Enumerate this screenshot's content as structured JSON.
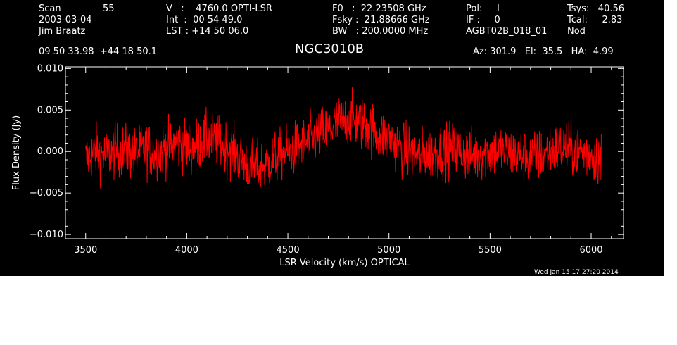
{
  "header": {
    "scan_label": "Scan",
    "scan_value": "55",
    "date": "2003-03-04",
    "observer": "Jim Braatz",
    "v_line": "V   :    4760.0 OPTI-LSR",
    "int_line": "Int  :  00 54 49.0",
    "lst_line": "LST : +14 50 06.0",
    "f0_line": "F0   :  22.23508 GHz",
    "fsky_line": "Fsky :  21.88666 GHz",
    "bw_line": "BW   : 200.0000 MHz",
    "pol_line": "Pol:     I",
    "if_line": "IF :     0",
    "project": "AGBT02B_018_01",
    "tsys_line": "Tsys:   40.56",
    "tcal_line": "Tcal:     2.83",
    "nod": "Nod",
    "coords": "09 50 33.98  +44 18 50.1",
    "source": "NGC3010B",
    "azelha": "Az: 301.9   El:  35.5   HA:  4.99",
    "timestamp": "Wed Jan 15 17:27:20 2014"
  },
  "colors": {
    "background": "#000000",
    "axes": "#ffffff",
    "trace": "#ff0000"
  },
  "chart_data": {
    "type": "line",
    "title": "NGC3010B",
    "xlabel": "LSR Velocity (km/s) OPTICAL",
    "ylabel": "Flux Density (Jy)",
    "xlim": [
      3400,
      6160
    ],
    "ylim": [
      -0.0105,
      0.0102
    ],
    "x_ticks": [
      3500,
      4000,
      4500,
      5000,
      5500,
      6000
    ],
    "x_tick_labels": [
      "3500",
      "4000",
      "4500",
      "5000",
      "5500",
      "6000"
    ],
    "y_ticks": [
      -0.01,
      -0.005,
      0.0,
      0.005,
      0.01
    ],
    "y_tick_labels": [
      "−0.010",
      "−0.005",
      "0.000",
      "0.005",
      "0.010"
    ],
    "grid": false,
    "series": [
      {
        "color": "#ff0000",
        "x": [
          3500,
          3550,
          3600,
          3650,
          3700,
          3750,
          3800,
          3850,
          3900,
          3950,
          4000,
          4050,
          4100,
          4150,
          4200,
          4250,
          4300,
          4350,
          4400,
          4450,
          4500,
          4550,
          4600,
          4650,
          4700,
          4750,
          4800,
          4850,
          4900,
          4950,
          5000,
          5050,
          5100,
          5150,
          5200,
          5250,
          5300,
          5350,
          5400,
          5450,
          5500,
          5550,
          5600,
          5650,
          5700,
          5750,
          5800,
          5850,
          5900,
          5950,
          6000,
          6050
        ],
        "y": [
          -0.001,
          0.0,
          -0.0005,
          0.0002,
          0.0,
          -0.0003,
          0.0003,
          -0.0002,
          0.0005,
          0.001,
          0.0005,
          0.0008,
          0.0015,
          0.0012,
          0.0005,
          -0.0005,
          -0.0015,
          -0.002,
          -0.0015,
          -0.0005,
          0.0,
          0.0005,
          0.001,
          0.002,
          0.0025,
          0.0035,
          0.004,
          0.0035,
          0.003,
          0.002,
          0.0015,
          0.0005,
          0.0,
          -0.0005,
          -0.0003,
          0.0,
          0.0003,
          0.0,
          -0.0005,
          -0.0003,
          0.0,
          0.0002,
          -0.0003,
          -0.0005,
          -0.0008,
          -0.0005,
          0.0,
          0.0005,
          0.0003,
          0.0,
          -0.0003,
          -0.001
        ],
        "noise_rms_jy": 0.0025
      }
    ]
  }
}
